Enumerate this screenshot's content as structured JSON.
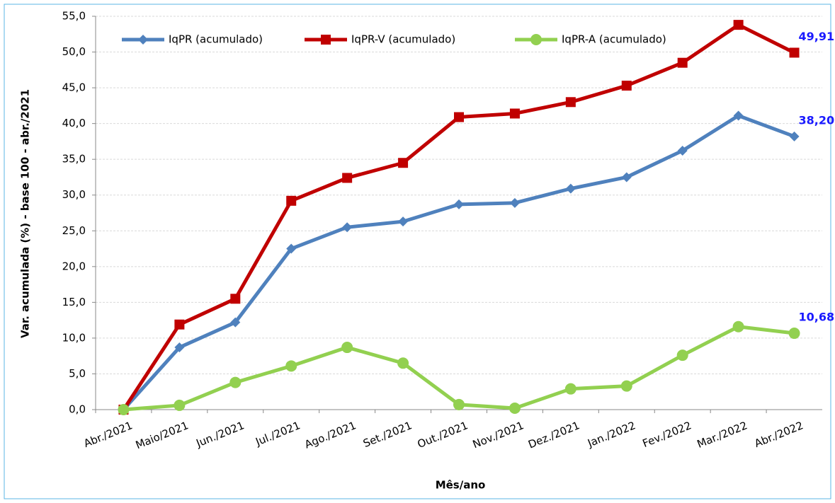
{
  "chart_data": {
    "type": "line",
    "x_label": "Mês/ano",
    "y_label": "Var. acumulada (%) - base 100 - abr./2021",
    "categories": [
      "Abr./2021",
      "Maio/2021",
      "Jun./2021",
      "Jul./2021",
      "Ago./2021",
      "Set./2021",
      "Out./2021",
      "Nov./2021",
      "Dez./2021",
      "Jan./2022",
      "Fev./2022",
      "Mar./2022",
      "Abr./2022"
    ],
    "series": [
      {
        "name": "IqPR (acumulado)",
        "color": "#4f81bd",
        "marker": "diamond",
        "values": [
          0,
          8.7,
          12.2,
          22.5,
          25.5,
          26.3,
          28.7,
          28.9,
          30.9,
          32.5,
          36.2,
          41.1,
          38.2
        ],
        "value_labels": [
          null,
          null,
          null,
          null,
          null,
          null,
          null,
          null,
          null,
          null,
          null,
          null,
          "38,20"
        ]
      },
      {
        "name": "IqPR-V  (acumulado)",
        "color": "#c00000",
        "marker": "square",
        "values": [
          0,
          11.9,
          15.5,
          29.2,
          32.4,
          34.5,
          40.9,
          41.4,
          43.0,
          45.3,
          48.5,
          53.8,
          49.91
        ],
        "value_labels": [
          null,
          null,
          null,
          null,
          null,
          null,
          null,
          null,
          null,
          null,
          null,
          null,
          "49,91"
        ]
      },
      {
        "name": "IqPR-A  (acumulado)",
        "color": "#92d050",
        "marker": "circle",
        "values": [
          0,
          0.6,
          3.8,
          6.1,
          8.7,
          6.5,
          0.7,
          0.2,
          2.9,
          3.3,
          7.6,
          11.6,
          10.68
        ],
        "value_labels": [
          null,
          null,
          null,
          null,
          null,
          null,
          null,
          null,
          null,
          null,
          null,
          null,
          "10,68"
        ]
      }
    ],
    "ylim": [
      0,
      55
    ],
    "yticks": [
      {
        "value": 0,
        "label": "0,0"
      },
      {
        "value": 5,
        "label": "5,0"
      },
      {
        "value": 10,
        "label": "10,0"
      },
      {
        "value": 15,
        "label": "15,0"
      },
      {
        "value": 20,
        "label": "20,0"
      },
      {
        "value": 25,
        "label": "25,0"
      },
      {
        "value": 30,
        "label": "30,0"
      },
      {
        "value": 35,
        "label": "35,0"
      },
      {
        "value": 40,
        "label": "40,0"
      },
      {
        "value": 45,
        "label": "45,0"
      },
      {
        "value": 50,
        "label": "50,0"
      },
      {
        "value": 55,
        "label": "55,0"
      }
    ],
    "grid": true
  }
}
